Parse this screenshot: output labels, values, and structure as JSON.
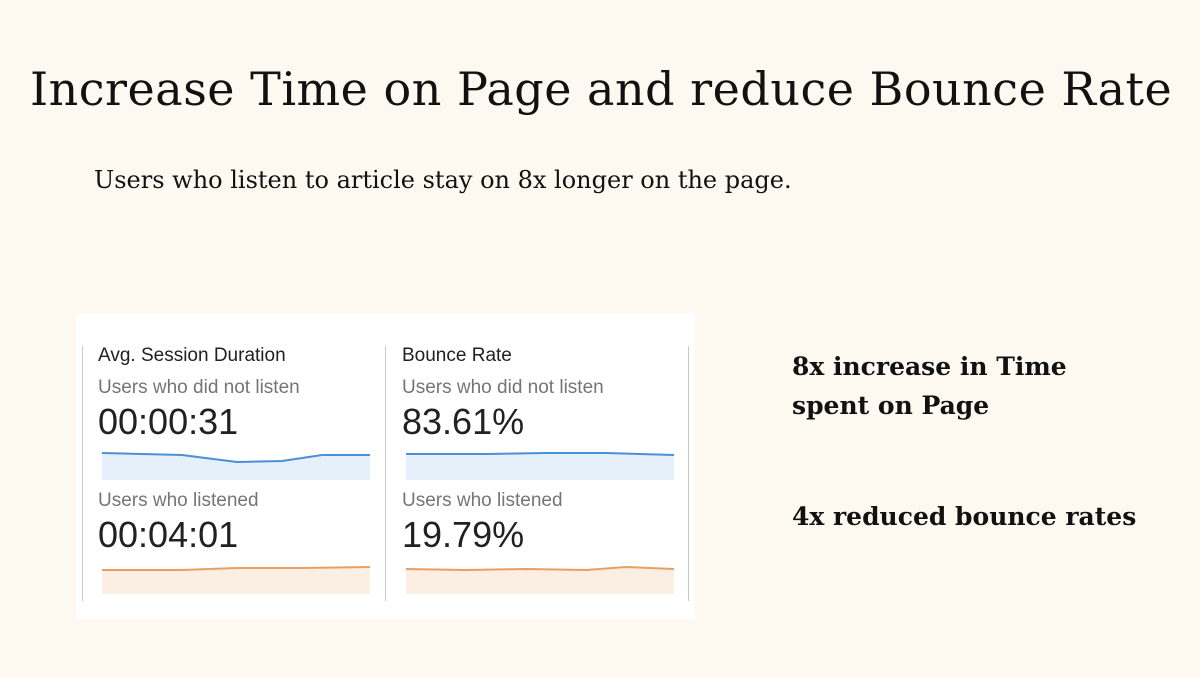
{
  "slide": {
    "title": "Increase Time on Page and reduce Bounce Rate",
    "subtitle": "Users who listen to article stay on 8x longer on the page."
  },
  "metrics": [
    {
      "title": "Avg. Session Duration",
      "groups": [
        {
          "label": "Users who did not listen",
          "value": "00:00:31",
          "color": "#4a90d9",
          "fill": "#e6f0fa"
        },
        {
          "label": "Users who listened",
          "value": "00:04:01",
          "color": "#e8a062",
          "fill": "#fbeee3"
        }
      ]
    },
    {
      "title": "Bounce Rate",
      "groups": [
        {
          "label": "Users who did not listen",
          "value": "83.61%",
          "color": "#4a90d9",
          "fill": "#e6f0fa"
        },
        {
          "label": "Users who listened",
          "value": "19.79%",
          "color": "#e8a062",
          "fill": "#fbeee3"
        }
      ]
    }
  ],
  "highlights": [
    "8x increase in Time spent on Page",
    "4x reduced bounce rates"
  ]
}
